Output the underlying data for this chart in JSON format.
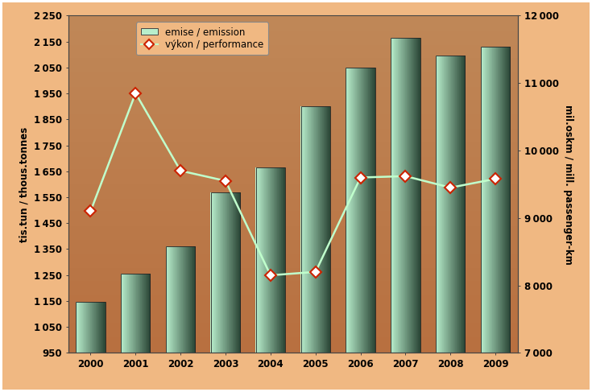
{
  "years": [
    2000,
    2001,
    2002,
    2003,
    2004,
    2005,
    2006,
    2007,
    2008,
    2009
  ],
  "emissions": [
    1145,
    1255,
    1360,
    1570,
    1665,
    1900,
    2050,
    2165,
    2095,
    2130
  ],
  "performance": [
    9100,
    10850,
    9700,
    9550,
    8150,
    8200,
    9600,
    9620,
    9450,
    9580
  ],
  "bar_left_color": "#b8eecc",
  "bar_right_color": "#2a4535",
  "line_color": "#c0ffcc",
  "marker_face_color": "#ffffff",
  "marker_edge_color": "#cc2200",
  "left_ylabel": "tis.tun / thous.tonnes",
  "right_ylabel": "mil.oskm / mill. passenger-km",
  "left_ylim": [
    950,
    2250
  ],
  "right_ylim": [
    7000,
    12000
  ],
  "left_yticks": [
    950,
    1050,
    1150,
    1250,
    1350,
    1450,
    1550,
    1650,
    1750,
    1850,
    1950,
    2050,
    2150,
    2250
  ],
  "right_yticks": [
    7000,
    8000,
    9000,
    10000,
    11000,
    12000
  ],
  "legend_emission_label": "emise / emission",
  "legend_performance_label": "výkon / performance",
  "bg_outer_color": "#f0b882",
  "bg_inner_color_top": "#c08858",
  "bg_inner_color_bottom": "#b87040",
  "tick_fontsize": 8.5,
  "axis_fontsize": 8.5
}
